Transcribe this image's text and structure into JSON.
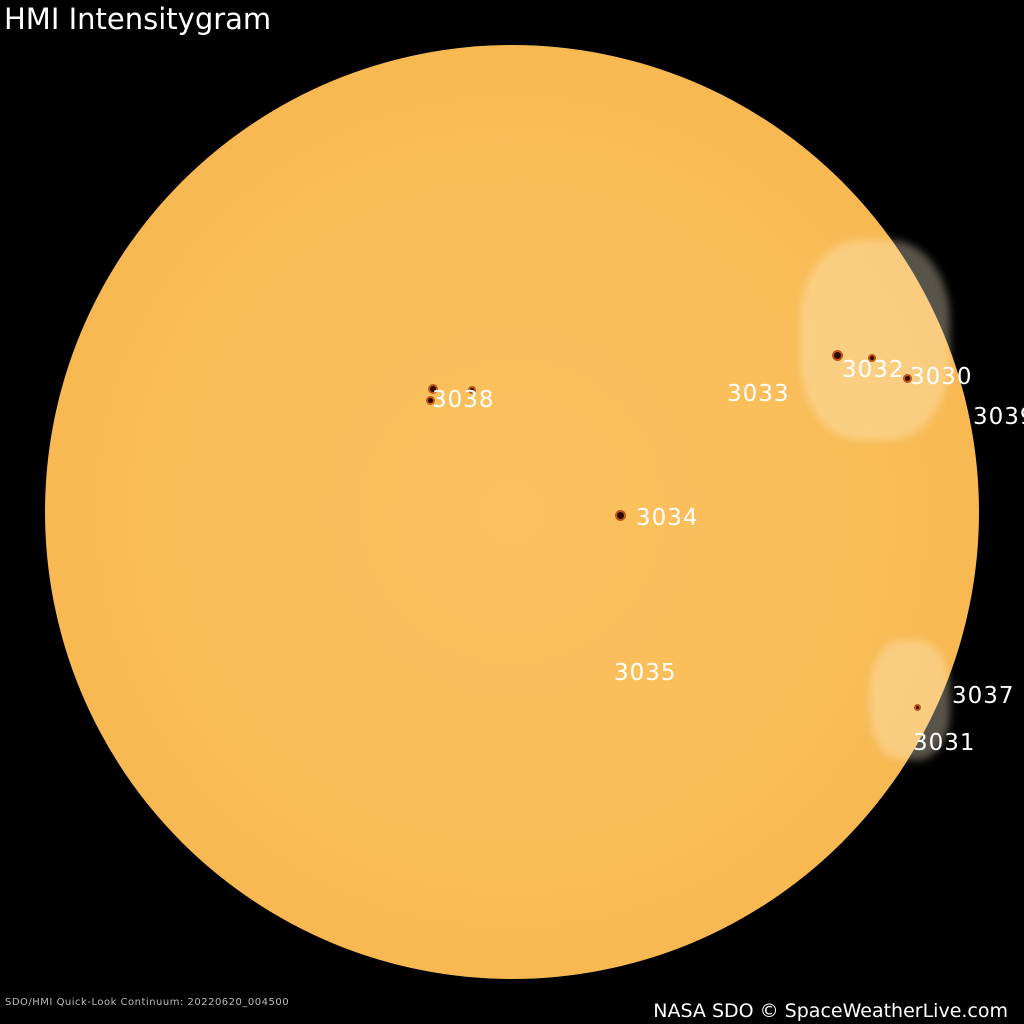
{
  "title": "HMI Intensitygram",
  "caption": "SDO/HMI Quick-Look Continuum: 20220620_004500",
  "credit": "NASA SDO © SpaceWeatherLive.com",
  "colors": {
    "sun": "#f9bd58",
    "background": "#000000",
    "label": "#ffffff",
    "sunspot": "#2a0a00"
  },
  "regions": [
    {
      "id": "3038"
    },
    {
      "id": "3033"
    },
    {
      "id": "3032"
    },
    {
      "id": "3030"
    },
    {
      "id": "3039"
    },
    {
      "id": "3034"
    },
    {
      "id": "3035"
    },
    {
      "id": "3037"
    },
    {
      "id": "3031"
    }
  ]
}
